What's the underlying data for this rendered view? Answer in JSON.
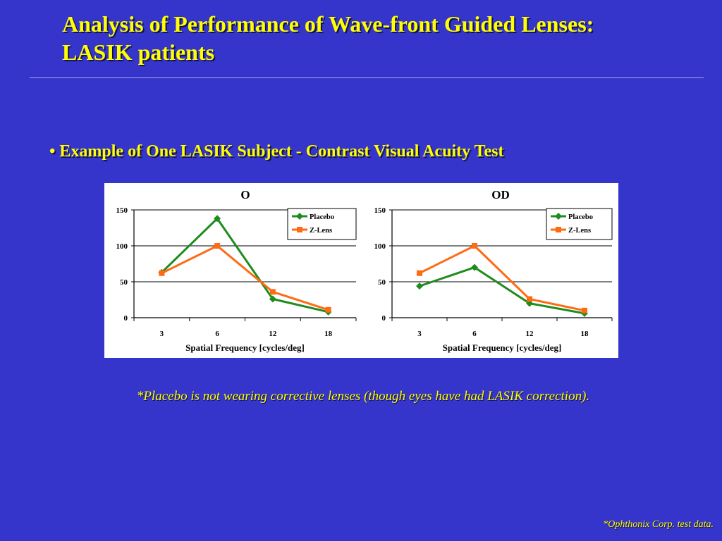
{
  "slide": {
    "title_line1": "Analysis of Performance of Wave-front Guided Lenses:",
    "title_line2": "LASIK patients",
    "bullet_marker": "•",
    "bullet_text": "Example of One LASIK Subject - Contrast Visual Acuity Test",
    "footnote": "*Placebo is not wearing corrective lenses (though eyes have had LASIK correction).",
    "source_note": "*Ophthonix Corp. test data."
  },
  "colors": {
    "background": "#3535CC",
    "text": "#FFFF00",
    "rule": "#A9A9DD",
    "chart_background": "#FFFFFF",
    "placebo": "#1E8C1E",
    "z_lens": "#FF6A13"
  },
  "chart_data": [
    {
      "type": "line",
      "title": "O",
      "xlabel": "Spatial Frequency [cycles/deg]",
      "categories": [
        "3",
        "6",
        "12",
        "18"
      ],
      "ylim": [
        0,
        150
      ],
      "yticks": [
        0,
        50,
        100,
        150
      ],
      "grid": true,
      "legend": "top-right",
      "series": [
        {
          "name": "Placebo",
          "marker": "diamond",
          "color": "#1E8C1E",
          "values": [
            63,
            138,
            26,
            8
          ]
        },
        {
          "name": "Z-Lens",
          "marker": "square",
          "color": "#FF6A13",
          "values": [
            62,
            100,
            36,
            11
          ]
        }
      ]
    },
    {
      "type": "line",
      "title": "OD",
      "xlabel": "Spatial Frequency [cycles/deg]",
      "categories": [
        "3",
        "6",
        "12",
        "18"
      ],
      "ylim": [
        0,
        150
      ],
      "yticks": [
        0,
        50,
        100,
        150
      ],
      "grid": true,
      "legend": "top-right",
      "series": [
        {
          "name": "Placebo",
          "marker": "diamond",
          "color": "#1E8C1E",
          "values": [
            44,
            70,
            20,
            6
          ]
        },
        {
          "name": "Z-Lens",
          "marker": "square",
          "color": "#FF6A13",
          "values": [
            62,
            100,
            26,
            10
          ]
        }
      ]
    }
  ]
}
